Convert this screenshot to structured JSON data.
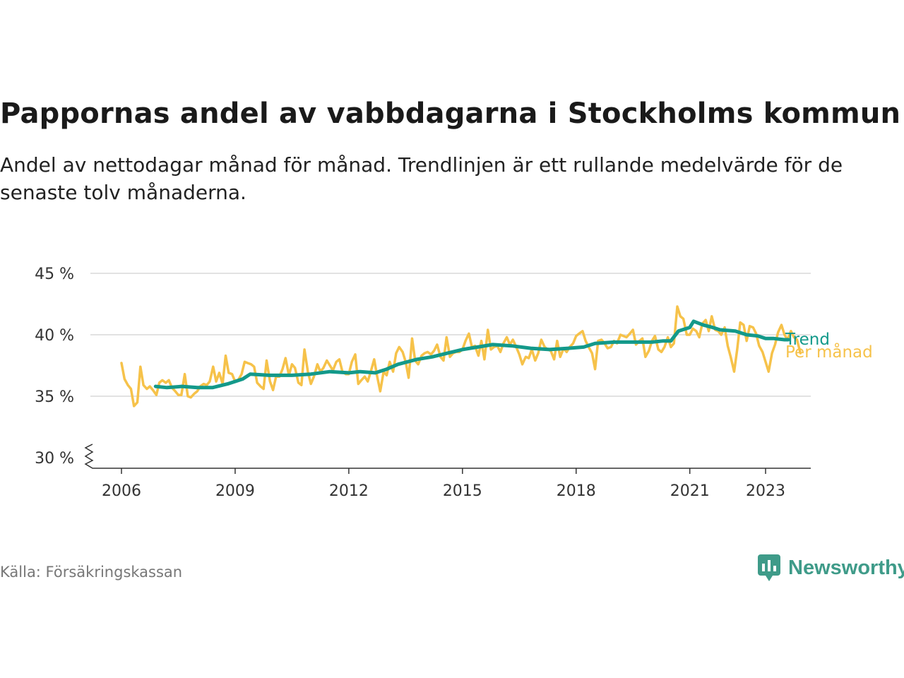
{
  "title": "Pappornas andel av vabbdagarna i Stockholms kommun",
  "subtitle": "Andel av nettodagar månad för månad. Trendlinjen är ett rullande medelvärde för de senaste tolv månaderna.",
  "source": "Källa: Försäkringskassan",
  "brand": {
    "name": "Newsworthy",
    "icon": "newsworthy-logo-icon",
    "color": "#3f9b89"
  },
  "chart_data": {
    "type": "line",
    "title": "Pappornas andel av vabbdagarna i Stockholms kommun",
    "y_tick_labels": [
      "30 %",
      "35 %",
      "40 %",
      "45 %"
    ],
    "y_ticks": [
      30,
      35,
      40,
      45
    ],
    "ylim": [
      30,
      45
    ],
    "y_axis_break": true,
    "x_tick_labels": [
      "2006",
      "2009",
      "2012",
      "2015",
      "2018",
      "2021",
      "2023"
    ],
    "x_ticks": [
      2006,
      2009,
      2012,
      2015,
      2018,
      2021,
      2023
    ],
    "xlim": [
      2005.1,
      2024.3
    ],
    "grid": true,
    "series": [
      {
        "name": "Trend",
        "color": "#13998a",
        "points": [
          [
            2006.9,
            35.8
          ],
          [
            2007.2,
            35.7
          ],
          [
            2007.6,
            35.8
          ],
          [
            2008.0,
            35.7
          ],
          [
            2008.4,
            35.7
          ],
          [
            2008.8,
            36.0
          ],
          [
            2009.2,
            36.4
          ],
          [
            2009.4,
            36.8
          ],
          [
            2009.9,
            36.7
          ],
          [
            2010.5,
            36.7
          ],
          [
            2011.0,
            36.8
          ],
          [
            2011.5,
            37.0
          ],
          [
            2012.0,
            36.9
          ],
          [
            2012.3,
            37.0
          ],
          [
            2012.7,
            36.9
          ],
          [
            2013.0,
            37.2
          ],
          [
            2013.3,
            37.6
          ],
          [
            2013.8,
            38.0
          ],
          [
            2014.2,
            38.2
          ],
          [
            2014.6,
            38.5
          ],
          [
            2015.0,
            38.8
          ],
          [
            2015.4,
            39.0
          ],
          [
            2015.8,
            39.2
          ],
          [
            2016.3,
            39.1
          ],
          [
            2016.8,
            38.9
          ],
          [
            2017.3,
            38.8
          ],
          [
            2017.8,
            38.9
          ],
          [
            2018.2,
            39.0
          ],
          [
            2018.5,
            39.3
          ],
          [
            2019.0,
            39.4
          ],
          [
            2019.5,
            39.4
          ],
          [
            2020.0,
            39.4
          ],
          [
            2020.3,
            39.5
          ],
          [
            2020.5,
            39.5
          ],
          [
            2020.7,
            40.3
          ],
          [
            2021.0,
            40.6
          ],
          [
            2021.1,
            41.1
          ],
          [
            2021.35,
            40.8
          ],
          [
            2021.6,
            40.6
          ],
          [
            2021.8,
            40.4
          ],
          [
            2022.2,
            40.3
          ],
          [
            2022.5,
            40.0
          ],
          [
            2022.8,
            39.9
          ],
          [
            2023.0,
            39.7
          ],
          [
            2023.2,
            39.7
          ],
          [
            2023.5,
            39.6
          ],
          [
            2023.6,
            39.6
          ]
        ]
      },
      {
        "name": "Per månad",
        "color": "#f6c24a",
        "points": [
          [
            2006.0,
            37.7
          ],
          [
            2006.08,
            36.4
          ],
          [
            2006.17,
            35.9
          ],
          [
            2006.25,
            35.6
          ],
          [
            2006.33,
            34.2
          ],
          [
            2006.42,
            34.5
          ],
          [
            2006.5,
            37.4
          ],
          [
            2006.58,
            35.9
          ],
          [
            2006.67,
            35.6
          ],
          [
            2006.75,
            35.8
          ],
          [
            2006.83,
            35.5
          ],
          [
            2006.92,
            35.1
          ],
          [
            2007.0,
            36.1
          ],
          [
            2007.08,
            36.3
          ],
          [
            2007.17,
            36.1
          ],
          [
            2007.25,
            36.3
          ],
          [
            2007.33,
            35.7
          ],
          [
            2007.42,
            35.4
          ],
          [
            2007.5,
            35.1
          ],
          [
            2007.58,
            35.1
          ],
          [
            2007.67,
            36.8
          ],
          [
            2007.75,
            35.0
          ],
          [
            2007.83,
            34.9
          ],
          [
            2007.92,
            35.2
          ],
          [
            2008.0,
            35.4
          ],
          [
            2008.08,
            35.8
          ],
          [
            2008.17,
            36.0
          ],
          [
            2008.25,
            35.9
          ],
          [
            2008.33,
            36.2
          ],
          [
            2008.42,
            37.4
          ],
          [
            2008.5,
            36.2
          ],
          [
            2008.58,
            36.9
          ],
          [
            2008.67,
            36.0
          ],
          [
            2008.75,
            38.3
          ],
          [
            2008.83,
            36.9
          ],
          [
            2008.92,
            36.8
          ],
          [
            2009.0,
            36.2
          ],
          [
            2009.08,
            36.3
          ],
          [
            2009.17,
            36.8
          ],
          [
            2009.25,
            37.8
          ],
          [
            2009.33,
            37.7
          ],
          [
            2009.42,
            37.6
          ],
          [
            2009.5,
            37.4
          ],
          [
            2009.58,
            36.1
          ],
          [
            2009.67,
            35.8
          ],
          [
            2009.75,
            35.6
          ],
          [
            2009.83,
            37.9
          ],
          [
            2009.92,
            36.2
          ],
          [
            2010.0,
            35.5
          ],
          [
            2010.08,
            36.6
          ],
          [
            2010.17,
            36.6
          ],
          [
            2010.25,
            37.2
          ],
          [
            2010.33,
            38.1
          ],
          [
            2010.42,
            36.7
          ],
          [
            2010.5,
            37.6
          ],
          [
            2010.58,
            37.3
          ],
          [
            2010.67,
            36.1
          ],
          [
            2010.75,
            35.9
          ],
          [
            2010.83,
            38.8
          ],
          [
            2010.92,
            37.0
          ],
          [
            2011.0,
            36.0
          ],
          [
            2011.08,
            36.6
          ],
          [
            2011.17,
            37.6
          ],
          [
            2011.25,
            37.0
          ],
          [
            2011.33,
            37.3
          ],
          [
            2011.42,
            37.9
          ],
          [
            2011.5,
            37.5
          ],
          [
            2011.58,
            37.1
          ],
          [
            2011.67,
            37.8
          ],
          [
            2011.75,
            38.0
          ],
          [
            2011.83,
            37.0
          ],
          [
            2011.92,
            36.8
          ],
          [
            2012.0,
            36.8
          ],
          [
            2012.08,
            37.8
          ],
          [
            2012.17,
            38.4
          ],
          [
            2012.25,
            36.0
          ],
          [
            2012.33,
            36.3
          ],
          [
            2012.42,
            36.6
          ],
          [
            2012.5,
            36.2
          ],
          [
            2012.58,
            37.0
          ],
          [
            2012.67,
            38.0
          ],
          [
            2012.75,
            36.6
          ],
          [
            2012.83,
            35.4
          ],
          [
            2012.92,
            37.0
          ],
          [
            2013.0,
            36.7
          ],
          [
            2013.08,
            37.8
          ],
          [
            2013.17,
            37.0
          ],
          [
            2013.25,
            38.5
          ],
          [
            2013.33,
            39.0
          ],
          [
            2013.42,
            38.6
          ],
          [
            2013.5,
            37.8
          ],
          [
            2013.58,
            36.5
          ],
          [
            2013.67,
            39.7
          ],
          [
            2013.75,
            37.9
          ],
          [
            2013.83,
            37.6
          ],
          [
            2013.92,
            38.3
          ],
          [
            2014.0,
            38.5
          ],
          [
            2014.08,
            38.6
          ],
          [
            2014.17,
            38.4
          ],
          [
            2014.25,
            38.7
          ],
          [
            2014.33,
            39.2
          ],
          [
            2014.42,
            38.2
          ],
          [
            2014.5,
            37.9
          ],
          [
            2014.58,
            39.8
          ],
          [
            2014.67,
            38.2
          ],
          [
            2014.75,
            38.5
          ],
          [
            2014.83,
            38.6
          ],
          [
            2014.92,
            38.6
          ],
          [
            2015.0,
            38.8
          ],
          [
            2015.08,
            39.5
          ],
          [
            2015.17,
            40.1
          ],
          [
            2015.25,
            39.0
          ],
          [
            2015.33,
            39.1
          ],
          [
            2015.42,
            38.3
          ],
          [
            2015.5,
            39.5
          ],
          [
            2015.58,
            38.0
          ],
          [
            2015.67,
            40.4
          ],
          [
            2015.75,
            38.8
          ],
          [
            2015.83,
            39.0
          ],
          [
            2015.92,
            39.1
          ],
          [
            2016.0,
            38.6
          ],
          [
            2016.08,
            39.3
          ],
          [
            2016.17,
            39.8
          ],
          [
            2016.25,
            39.2
          ],
          [
            2016.33,
            39.6
          ],
          [
            2016.42,
            39.0
          ],
          [
            2016.5,
            38.4
          ],
          [
            2016.58,
            37.6
          ],
          [
            2016.67,
            38.2
          ],
          [
            2016.75,
            38.1
          ],
          [
            2016.83,
            38.8
          ],
          [
            2016.92,
            37.9
          ],
          [
            2017.0,
            38.5
          ],
          [
            2017.08,
            39.6
          ],
          [
            2017.17,
            39.0
          ],
          [
            2017.25,
            38.8
          ],
          [
            2017.33,
            38.7
          ],
          [
            2017.42,
            38.0
          ],
          [
            2017.5,
            39.5
          ],
          [
            2017.58,
            38.2
          ],
          [
            2017.67,
            38.9
          ],
          [
            2017.75,
            38.6
          ],
          [
            2017.83,
            39.0
          ],
          [
            2017.92,
            39.3
          ],
          [
            2018.0,
            39.9
          ],
          [
            2018.08,
            40.1
          ],
          [
            2018.17,
            40.3
          ],
          [
            2018.25,
            39.5
          ],
          [
            2018.33,
            39.0
          ],
          [
            2018.42,
            38.5
          ],
          [
            2018.5,
            37.2
          ],
          [
            2018.58,
            39.5
          ],
          [
            2018.67,
            39.6
          ],
          [
            2018.75,
            39.3
          ],
          [
            2018.83,
            38.9
          ],
          [
            2018.92,
            39.0
          ],
          [
            2019.0,
            39.5
          ],
          [
            2019.08,
            39.3
          ],
          [
            2019.17,
            40.0
          ],
          [
            2019.25,
            39.9
          ],
          [
            2019.33,
            39.8
          ],
          [
            2019.42,
            40.1
          ],
          [
            2019.5,
            40.4
          ],
          [
            2019.58,
            39.2
          ],
          [
            2019.67,
            39.5
          ],
          [
            2019.75,
            39.7
          ],
          [
            2019.83,
            38.2
          ],
          [
            2019.92,
            38.7
          ],
          [
            2020.0,
            39.5
          ],
          [
            2020.08,
            39.9
          ],
          [
            2020.17,
            38.8
          ],
          [
            2020.25,
            38.6
          ],
          [
            2020.33,
            39.0
          ],
          [
            2020.42,
            39.8
          ],
          [
            2020.5,
            39.0
          ],
          [
            2020.58,
            39.3
          ],
          [
            2020.67,
            42.3
          ],
          [
            2020.75,
            41.5
          ],
          [
            2020.83,
            41.3
          ],
          [
            2020.92,
            40.0
          ],
          [
            2021.0,
            40.0
          ],
          [
            2021.08,
            40.5
          ],
          [
            2021.17,
            40.3
          ],
          [
            2021.25,
            39.8
          ],
          [
            2021.33,
            40.9
          ],
          [
            2021.42,
            41.2
          ],
          [
            2021.5,
            40.3
          ],
          [
            2021.58,
            41.5
          ],
          [
            2021.67,
            40.4
          ],
          [
            2021.75,
            40.3
          ],
          [
            2021.83,
            40.0
          ],
          [
            2021.92,
            40.6
          ],
          [
            2022.0,
            39.1
          ],
          [
            2022.08,
            38.2
          ],
          [
            2022.17,
            37.0
          ],
          [
            2022.25,
            38.8
          ],
          [
            2022.33,
            41.0
          ],
          [
            2022.42,
            40.8
          ],
          [
            2022.5,
            39.5
          ],
          [
            2022.58,
            40.7
          ],
          [
            2022.67,
            40.6
          ],
          [
            2022.75,
            40.1
          ],
          [
            2022.83,
            39.1
          ],
          [
            2022.92,
            38.6
          ],
          [
            2023.0,
            37.8
          ],
          [
            2023.08,
            37.0
          ],
          [
            2023.17,
            38.5
          ],
          [
            2023.25,
            39.2
          ],
          [
            2023.33,
            40.2
          ],
          [
            2023.42,
            40.8
          ],
          [
            2023.5,
            40.0
          ],
          [
            2023.58,
            39.6
          ],
          [
            2023.67,
            40.3
          ],
          [
            2023.75,
            39.8
          ],
          [
            2023.83,
            39.6
          ],
          [
            2023.92,
            38.5
          ]
        ]
      }
    ]
  }
}
